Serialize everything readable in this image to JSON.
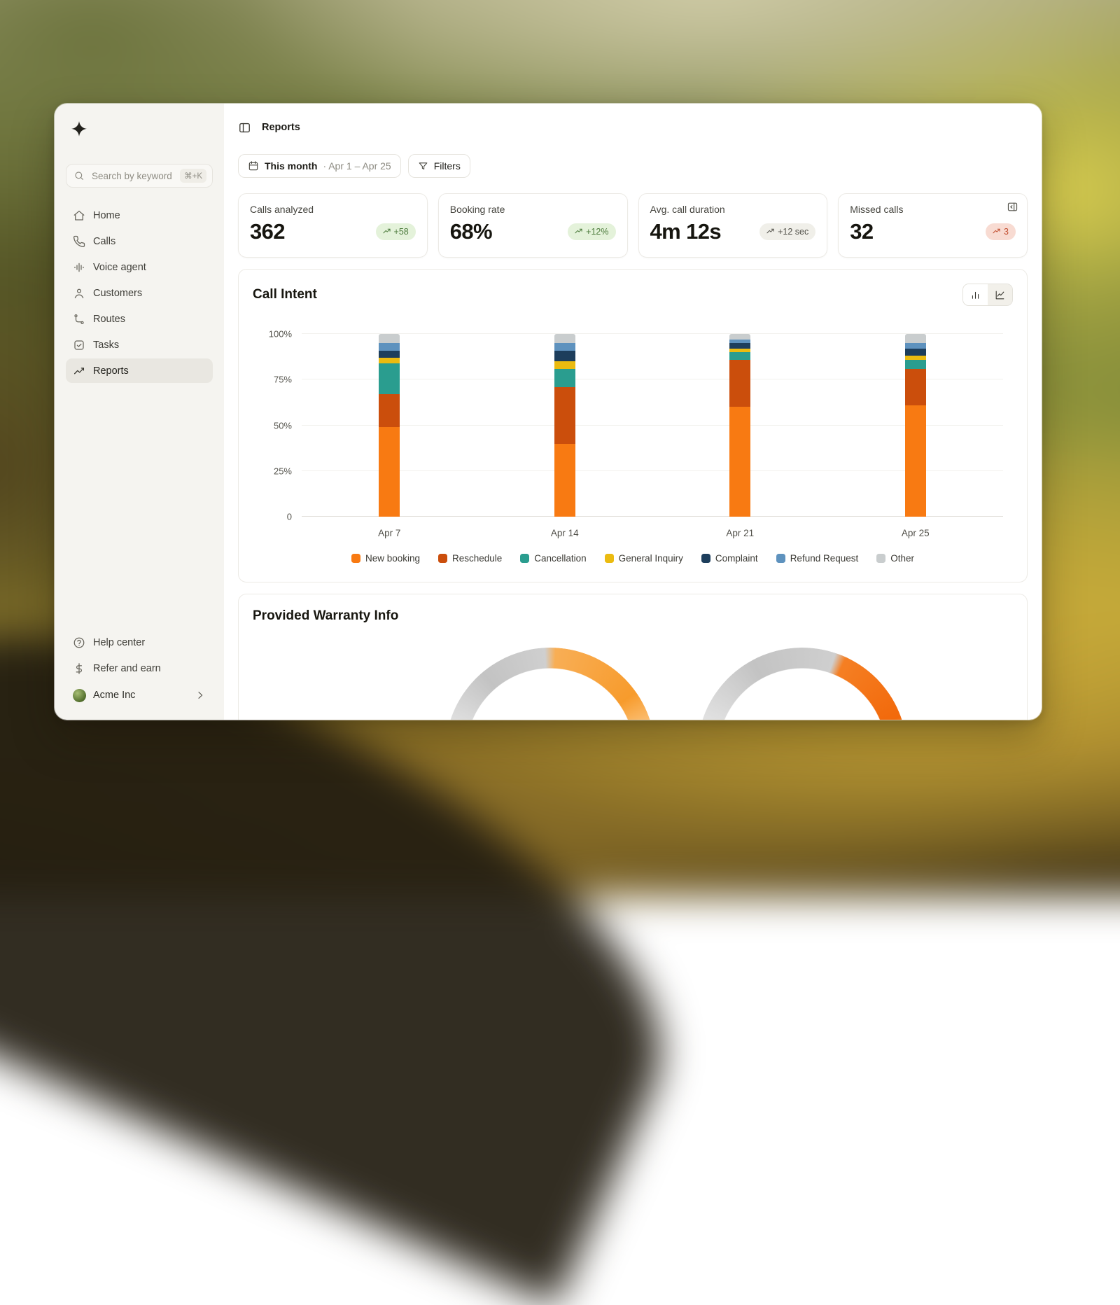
{
  "header": {
    "title": "Reports"
  },
  "sidebar": {
    "search": {
      "placeholder": "Search by keyword",
      "shortcut": "⌘+K"
    },
    "items": [
      {
        "label": "Home"
      },
      {
        "label": "Calls"
      },
      {
        "label": "Voice agent"
      },
      {
        "label": "Customers"
      },
      {
        "label": "Routes"
      },
      {
        "label": "Tasks"
      },
      {
        "label": "Reports",
        "active": true
      }
    ],
    "footer_items": [
      {
        "label": "Help center"
      },
      {
        "label": "Refer and earn"
      }
    ],
    "account": {
      "name": "Acme Inc"
    }
  },
  "toolbar": {
    "date_filter": {
      "label": "This month",
      "range": "· Apr 1 – Apr 25"
    },
    "filters_label": "Filters"
  },
  "stats": {
    "cards": [
      {
        "label": "Calls analyzed",
        "value": "362",
        "badge": "+58",
        "type": "positive"
      },
      {
        "label": "Booking rate",
        "value": "68%",
        "badge": "+12%",
        "type": "positive"
      },
      {
        "label": "Avg. call duration",
        "value": "4m 12s",
        "badge": "+12 sec",
        "type": "neutral"
      },
      {
        "label": "Missed calls",
        "value": "32",
        "badge": "3",
        "type": "negative"
      }
    ]
  },
  "sections": {
    "call_intent_title": "Call Intent",
    "warranty_title": "Provided Warranty Info"
  },
  "colors": {
    "accent_orange": "#F87A12",
    "positive_badge_bg": "#E4F2DA",
    "neutral_badge_bg": "#F0EFE9",
    "negative_badge_bg": "#F8DBD2",
    "sidebar_bg": "#F5F4F0"
  },
  "chart_data": [
    {
      "type": "bar",
      "stacked": true,
      "title": "Call Intent",
      "categories": [
        "Apr 7",
        "Apr 14",
        "Apr 21",
        "Apr 25"
      ],
      "series": [
        {
          "name": "New booking",
          "color": "#F87A12",
          "values": [
            49,
            40,
            60,
            61
          ]
        },
        {
          "name": "Reschedule",
          "color": "#CB4E0C",
          "values": [
            18,
            31,
            26,
            20
          ]
        },
        {
          "name": "Cancellation",
          "color": "#2A9D8F",
          "values": [
            17,
            10,
            4,
            5
          ]
        },
        {
          "name": "General Inquiry",
          "color": "#EBBB10",
          "values": [
            3,
            4,
            2,
            2
          ]
        },
        {
          "name": "Complaint",
          "color": "#1D3E5C",
          "values": [
            4,
            6,
            3,
            4
          ]
        },
        {
          "name": "Refund Request",
          "color": "#5E92BE",
          "values": [
            4,
            4,
            2,
            3
          ]
        },
        {
          "name": "Other",
          "color": "#C9CDCE",
          "values": [
            5,
            5,
            3,
            5
          ]
        }
      ],
      "yticks": [
        {
          "label": "0",
          "value": 0
        },
        {
          "label": "25%",
          "value": 25
        },
        {
          "label": "50%",
          "value": 50
        },
        {
          "label": "75%",
          "value": 75
        },
        {
          "label": "100%",
          "value": 100
        }
      ],
      "ylim": [
        0,
        100
      ],
      "grid": true,
      "legend_position": "bottom"
    },
    {
      "type": "gauge",
      "title": "Provided Warranty Info",
      "gauges": [
        {
          "fill_pct": 50,
          "fill_color": "#F79B2C",
          "fill_color_light": "#F8AE55",
          "fill_color_end": "#FFDCAD",
          "track_color": "#C9C9C9"
        },
        {
          "fill_pct": 38,
          "fill_color": "#F2690B",
          "fill_color_light": "#F57F23",
          "fill_color_end": "#FFB877",
          "track_color": "#C9C9C9"
        }
      ]
    }
  ]
}
